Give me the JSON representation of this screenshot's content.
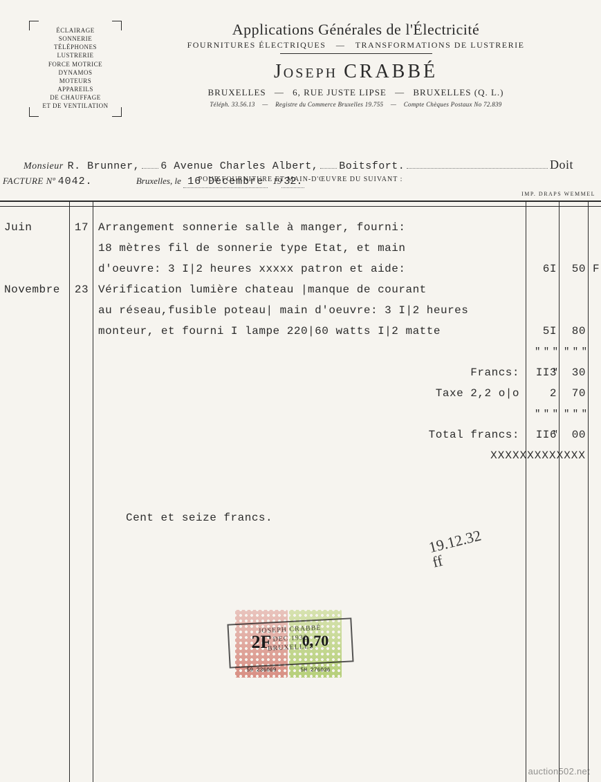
{
  "header": {
    "services": [
      "ÉCLAIRAGE",
      "SONNERIE",
      "TÉLÉPHONES",
      "LUSTRERIE",
      "FORCE MOTRICE",
      "DYNAMOS",
      "MOTEURS",
      "APPAREILS",
      "DE CHAUFFAGE",
      "ET DE VENTILATION"
    ],
    "title": "Applications Générales de l'Électricité",
    "subtitle_left": "FOURNITURES ÉLECTRIQUES",
    "subtitle_right": "TRANSFORMATIONS DE LUSTRERIE",
    "company_first": "Joseph",
    "company_last": "CRABBÉ",
    "address_city_l": "BRUXELLES",
    "address_street": "6, RUE JUSTE LIPSE",
    "address_city_r": "BRUXELLES  (Q. L.)",
    "tel_label": "Téléph.",
    "tel": "33.56.13",
    "reg_label": "Registre du Commerce Bruxelles",
    "reg": "19.755",
    "ccp_label": "Compte Chèques Postaux No",
    "ccp": "72.839"
  },
  "recipient": {
    "prefix": "Monsieur",
    "name": "R. Brunner,",
    "address": "6 Avenue Charles Albert,",
    "city": "Boitsfort.",
    "doit": "Doit"
  },
  "pour_line": "POUR FOURNITURE ET MAIN-D'ŒUVRE DU SUIVANT :",
  "facture": {
    "label": "FACTURE Nº",
    "number": "4042.",
    "place": "Bruxelles, le",
    "date": "16  Décembre",
    "year_prefix": "19",
    "year_suffix": "32."
  },
  "printer": "IMP.  DRAPS  WEMMEL",
  "lines": [
    {
      "month": "Juin",
      "day": "17",
      "desc": "Arrangement sonnerie salle à manger, fourni:"
    },
    {
      "desc": "18 mètres fil de sonnerie type Etat, et main"
    },
    {
      "desc": "d'oeuvre: 3 I|2 heures xxxxx patron et aide:",
      "struck": "xxxxx",
      "amt1": "6I",
      "amt2": "50",
      "unit": "F"
    },
    {
      "month": "Novembre",
      "day": "23",
      "desc": "Vérification lumière chateau |manque de courant"
    },
    {
      "desc": "au réseau,fusible poteau| main d'oeuvre: 3 I|2 heures"
    },
    {
      "desc": "monteur, et fourni I lampe 220|60 watts I|2 matte",
      "amt1": "5I",
      "amt2": "80"
    },
    {
      "quotes": true,
      "amt1": "\" \" \" \"",
      "amt2": "\" \" \""
    },
    {
      "desc_right": "Francs:",
      "amt1": "II3",
      "amt2": "30"
    },
    {
      "desc_right": "Taxe 2,2 o|o",
      "amt1": "2",
      "amt2": "70"
    },
    {
      "quotes": true,
      "amt1": "\" \" \" \"",
      "amt2": "\" \" \""
    },
    {
      "desc_right": "Total francs:",
      "amt1": "II6",
      "amt2": "00"
    },
    {
      "xrow": true,
      "desc": "XXXXXXXXXXXXX"
    },
    {
      "blank": true
    },
    {
      "blank": true
    },
    {
      "desc_center": "Cent et seize francs."
    }
  ],
  "signature": {
    "line1": "19.12.32",
    "line2": "ff"
  },
  "stamps": {
    "red_value": "2F",
    "red_serial": "59  236069",
    "green_value": "0,70",
    "green_serial": "5H  276036",
    "cancel_l1": "JOSEPH CRABBÉ",
    "cancel_l2": "DEC 1932",
    "cancel_l3": "BRUXELLES"
  },
  "watermark": "auction502.net"
}
